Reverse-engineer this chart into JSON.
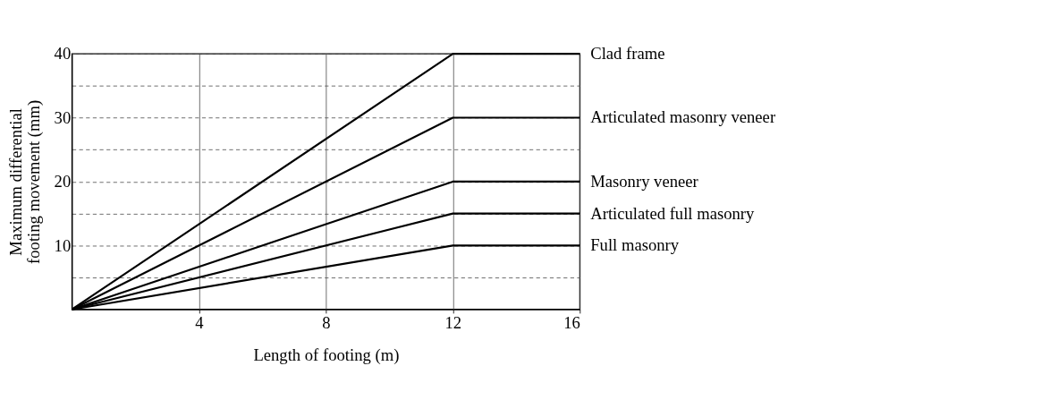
{
  "chart_data": {
    "type": "line",
    "xlabel": "Length of footing (m)",
    "ylabel": "Maximum differential footing movement (mm)",
    "x": [
      0,
      12,
      16
    ],
    "series": [
      {
        "name": "Clad frame",
        "color": "#000000",
        "values": [
          0,
          40,
          40
        ]
      },
      {
        "name": "Articulated masonry veneer",
        "color": "#000000",
        "values": [
          0,
          30,
          30
        ]
      },
      {
        "name": "Masonry veneer",
        "color": "#000000",
        "values": [
          0,
          20,
          20
        ]
      },
      {
        "name": "Articulated full masonry",
        "color": "#000000",
        "values": [
          0,
          15,
          15
        ]
      },
      {
        "name": "Full masonry",
        "color": "#000000",
        "values": [
          0,
          10,
          10
        ]
      }
    ],
    "xlim": [
      0,
      16
    ],
    "xticks": [
      4,
      8,
      12,
      16
    ],
    "ylim": [
      0,
      40
    ],
    "yticks": [
      {
        "value": 5,
        "label": null
      },
      10,
      {
        "value": 15,
        "label": null
      },
      20,
      {
        "value": 25,
        "label": null
      },
      30,
      {
        "value": 35,
        "label": null
      },
      40
    ],
    "grid": true,
    "legend": "right",
    "marker": "none",
    "line_style": "solid"
  }
}
